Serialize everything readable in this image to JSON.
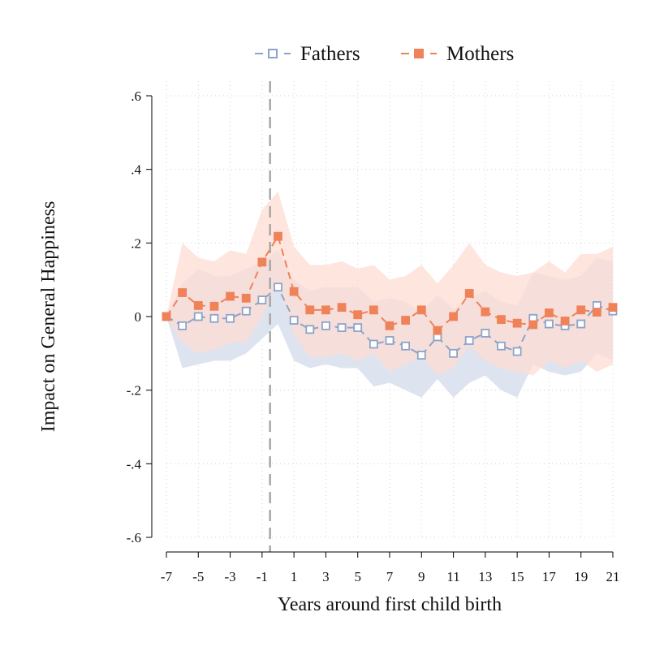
{
  "chart_data": {
    "type": "line",
    "xlabel": "Years around first child birth",
    "ylabel": "Impact on General Happiness",
    "xlim": [
      -7,
      21
    ],
    "ylim": [
      -0.6,
      0.6
    ],
    "x_ticks": [
      -7,
      -5,
      -3,
      -1,
      1,
      3,
      5,
      7,
      9,
      11,
      13,
      15,
      17,
      19,
      21
    ],
    "x_tick_labels": [
      "-7",
      "-5",
      "-3",
      "-1",
      "1",
      "3",
      "5",
      "7",
      "9",
      "11",
      "13",
      "15",
      "17",
      "19",
      "21"
    ],
    "y_ticks": [
      -0.6,
      -0.4,
      -0.2,
      0,
      0.2,
      0.4,
      0.6
    ],
    "y_tick_labels": [
      "-.6",
      "-.4",
      "-.2",
      "0",
      ".2",
      ".4",
      ".6"
    ],
    "reference_line_x": -0.5,
    "grid": true,
    "legend_position": "top",
    "x": [
      -7,
      -6,
      -5,
      -4,
      -3,
      -2,
      -1,
      0,
      1,
      2,
      3,
      4,
      5,
      6,
      7,
      8,
      9,
      10,
      11,
      12,
      13,
      14,
      15,
      16,
      17,
      18,
      19,
      20,
      21
    ],
    "series": [
      {
        "name": "Fathers",
        "color": "#8ea3c8",
        "band_color": "#dde3ef",
        "marker": "hollow-square",
        "line_style": "dashed",
        "values": [
          0,
          -0.025,
          0,
          -0.005,
          -0.005,
          0.015,
          0.045,
          0.08,
          -0.01,
          -0.035,
          -0.025,
          -0.03,
          -0.03,
          -0.075,
          -0.065,
          -0.08,
          -0.105,
          -0.055,
          -0.1,
          -0.065,
          -0.045,
          -0.08,
          -0.095,
          -0.005,
          -0.02,
          -0.025,
          -0.02,
          0.03,
          0.015
        ],
        "ci_lower": [
          0,
          -0.14,
          -0.13,
          -0.12,
          -0.12,
          -0.1,
          -0.06,
          -0.02,
          -0.12,
          -0.14,
          -0.13,
          -0.14,
          -0.14,
          -0.19,
          -0.18,
          -0.2,
          -0.22,
          -0.17,
          -0.22,
          -0.18,
          -0.16,
          -0.2,
          -0.22,
          -0.13,
          -0.15,
          -0.16,
          -0.15,
          -0.1,
          -0.12
        ],
        "ci_upper": [
          0,
          0.09,
          0.13,
          0.11,
          0.11,
          0.13,
          0.15,
          0.18,
          0.1,
          0.07,
          0.08,
          0.08,
          0.08,
          0.04,
          0.05,
          0.04,
          0.01,
          0.06,
          0.02,
          0.05,
          0.07,
          0.04,
          0.03,
          0.12,
          0.11,
          0.1,
          0.11,
          0.16,
          0.15
        ]
      },
      {
        "name": "Mothers",
        "color": "#f0825a",
        "band_color": "#fddcd3",
        "marker": "filled-square",
        "line_style": "dashed",
        "values": [
          0,
          0.065,
          0.03,
          0.028,
          0.055,
          0.05,
          0.148,
          0.218,
          0.068,
          0.018,
          0.018,
          0.025,
          0.005,
          0.018,
          -0.025,
          -0.01,
          0.018,
          -0.038,
          0.0,
          0.063,
          0.013,
          -0.008,
          -0.018,
          -0.022,
          0.01,
          -0.012,
          0.018,
          0.012,
          0.025
        ],
        "ci_lower": [
          0,
          -0.07,
          -0.1,
          -0.09,
          -0.07,
          -0.07,
          0.0,
          0.1,
          -0.05,
          -0.11,
          -0.11,
          -0.1,
          -0.12,
          -0.1,
          -0.15,
          -0.13,
          -0.11,
          -0.16,
          -0.14,
          -0.08,
          -0.12,
          -0.14,
          -0.15,
          -0.16,
          -0.12,
          -0.14,
          -0.12,
          -0.15,
          -0.13
        ],
        "ci_upper": [
          0,
          0.2,
          0.16,
          0.15,
          0.18,
          0.17,
          0.29,
          0.34,
          0.19,
          0.14,
          0.14,
          0.15,
          0.13,
          0.14,
          0.1,
          0.11,
          0.14,
          0.09,
          0.14,
          0.2,
          0.14,
          0.12,
          0.11,
          0.12,
          0.15,
          0.12,
          0.17,
          0.17,
          0.19
        ]
      }
    ]
  }
}
